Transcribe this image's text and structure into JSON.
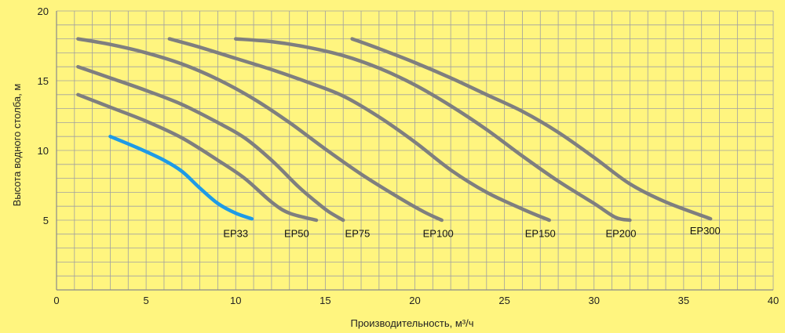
{
  "chart_data": {
    "type": "line",
    "title": "",
    "xlabel": "Производительность, м³/ч",
    "ylabel": "Высота водного столба, м",
    "xlim": [
      0,
      40
    ],
    "ylim": [
      0,
      20
    ],
    "x_ticks": [
      0,
      5,
      10,
      15,
      20,
      25,
      30,
      35,
      40
    ],
    "y_ticks": [
      5,
      10,
      15,
      20
    ],
    "x_minor_step": 1,
    "y_minor_step": 1,
    "grid": true,
    "background_color": "#fff57f",
    "grid_color": "#a0a0a0",
    "series": [
      {
        "name": "EP33",
        "color": "#1e9be6",
        "label_at": [
          10.0,
          3.8
        ],
        "x": [
          3.0,
          4.5,
          6.0,
          7.0,
          8.0,
          9.0,
          10.0,
          10.9
        ],
        "y": [
          11.0,
          10.2,
          9.3,
          8.5,
          7.3,
          6.2,
          5.5,
          5.1
        ]
      },
      {
        "name": "EP50",
        "color": "#7f7f7f",
        "label_at": [
          13.4,
          3.8
        ],
        "x": [
          1.2,
          3.0,
          5.0,
          7.0,
          9.0,
          10.5,
          12.0,
          13.0,
          14.5
        ],
        "y": [
          14.0,
          13.1,
          12.1,
          10.9,
          9.3,
          8.0,
          6.3,
          5.5,
          5.0
        ]
      },
      {
        "name": "EP75",
        "color": "#7f7f7f",
        "label_at": [
          16.8,
          3.8
        ],
        "x": [
          1.2,
          3.0,
          5.0,
          7.0,
          9.0,
          10.5,
          12.0,
          13.5,
          14.5,
          15.2,
          16.0
        ],
        "y": [
          16.0,
          15.2,
          14.3,
          13.3,
          12.0,
          10.9,
          9.3,
          7.4,
          6.3,
          5.6,
          5.0
        ]
      },
      {
        "name": "EP100",
        "color": "#7f7f7f",
        "label_at": [
          21.3,
          3.8
        ],
        "x": [
          1.2,
          3.0,
          5.0,
          7.0,
          9.0,
          11.0,
          13.0,
          15.0,
          17.0,
          19.0,
          20.5,
          21.5
        ],
        "y": [
          18.0,
          17.6,
          17.0,
          16.2,
          15.1,
          13.7,
          12.0,
          10.1,
          8.3,
          6.7,
          5.6,
          5.0
        ]
      },
      {
        "name": "EP150",
        "color": "#7f7f7f",
        "label_at": [
          27.0,
          3.8
        ],
        "x": [
          6.3,
          8.0,
          10.0,
          12.0,
          14.0,
          16.0,
          18.0,
          20.0,
          22.0,
          24.0,
          26.0,
          27.5
        ],
        "y": [
          18.0,
          17.4,
          16.6,
          15.8,
          14.9,
          13.9,
          12.4,
          10.6,
          8.6,
          7.0,
          5.8,
          5.0
        ]
      },
      {
        "name": "EP200",
        "color": "#7f7f7f",
        "label_at": [
          31.5,
          3.8
        ],
        "x": [
          10.0,
          12.0,
          14.0,
          16.0,
          18.0,
          20.0,
          22.0,
          24.0,
          26.0,
          28.0,
          30.0,
          31.2,
          32.0
        ],
        "y": [
          18.0,
          17.8,
          17.4,
          16.8,
          15.9,
          14.7,
          13.2,
          11.5,
          9.6,
          7.8,
          6.2,
          5.2,
          5.0
        ]
      },
      {
        "name": "EP300",
        "color": "#7f7f7f",
        "label_at": [
          36.2,
          4.0
        ],
        "x": [
          16.5,
          18.0,
          20.0,
          22.0,
          24.0,
          26.0,
          28.0,
          30.0,
          32.0,
          34.0,
          36.5
        ],
        "y": [
          18.0,
          17.3,
          16.3,
          15.2,
          14.0,
          12.8,
          11.3,
          9.5,
          7.6,
          6.3,
          5.1
        ]
      }
    ]
  }
}
